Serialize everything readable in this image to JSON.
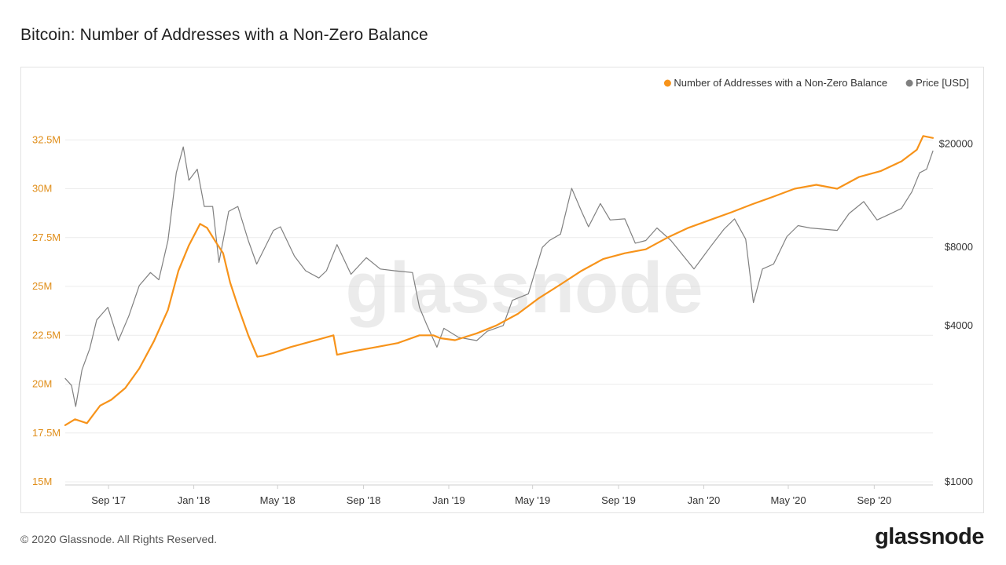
{
  "page": {
    "title": "Bitcoin: Number of Addresses with a Non-Zero Balance",
    "copyright": "© 2020 Glassnode. All Rights Reserved.",
    "logo": "glassnode",
    "watermark": "glassnode"
  },
  "chart_data": {
    "type": "line",
    "title": "Bitcoin: Number of Addresses with a Non-Zero Balance",
    "legend_position": "top-right",
    "grid": true,
    "x_range": [
      "2017-07-01",
      "2020-11-24"
    ],
    "x_tick_labels": [
      "Sep '17",
      "Jan '18",
      "May '18",
      "Sep '18",
      "Jan '19",
      "May '19",
      "Sep '19",
      "Jan '20",
      "May '20",
      "Sep '20"
    ],
    "y_left": {
      "range": [
        15,
        35
      ],
      "unit": "M",
      "tick_labels": [
        "15M",
        "17.5M",
        "20M",
        "22.5M",
        "25M",
        "27.5M",
        "30M",
        "32.5M"
      ],
      "tick_values": [
        15,
        17.5,
        20,
        22.5,
        25,
        27.5,
        30,
        32.5
      ]
    },
    "y_right": {
      "scale": "log",
      "range": [
        1000,
        32000
      ],
      "tick_labels": [
        "$1000",
        "$4000",
        "$8000",
        "$20000"
      ],
      "tick_values": [
        1000,
        4000,
        8000,
        20000
      ]
    },
    "series": [
      {
        "name": "Number of Addresses with a Non-Zero Balance",
        "axis": "left",
        "color": "#f7931a",
        "x": [
          "2017-07-01",
          "2017-07-15",
          "2017-08-01",
          "2017-08-20",
          "2017-09-05",
          "2017-09-25",
          "2017-10-15",
          "2017-11-05",
          "2017-11-25",
          "2017-12-10",
          "2017-12-25",
          "2018-01-10",
          "2018-01-20",
          "2018-02-01",
          "2018-02-12",
          "2018-02-22",
          "2018-03-05",
          "2018-03-20",
          "2018-04-02",
          "2018-04-10",
          "2018-04-25",
          "2018-05-20",
          "2018-06-20",
          "2018-07-20",
          "2018-07-25",
          "2018-08-20",
          "2018-09-20",
          "2018-10-20",
          "2018-11-20",
          "2018-12-10",
          "2018-12-20",
          "2019-01-10",
          "2019-02-10",
          "2019-03-10",
          "2019-04-10",
          "2019-05-10",
          "2019-06-10",
          "2019-07-10",
          "2019-08-10",
          "2019-09-10",
          "2019-10-10",
          "2019-11-10",
          "2019-12-10",
          "2020-01-10",
          "2020-02-10",
          "2020-03-10",
          "2020-04-10",
          "2020-05-10",
          "2020-06-10",
          "2020-07-10",
          "2020-08-10",
          "2020-09-10",
          "2020-10-10",
          "2020-11-01",
          "2020-11-10",
          "2020-11-24"
        ],
        "values": [
          17.9,
          18.2,
          18.0,
          18.9,
          19.2,
          19.8,
          20.8,
          22.2,
          23.8,
          25.8,
          27.1,
          28.2,
          28.0,
          27.3,
          26.7,
          25.2,
          24.0,
          22.5,
          21.4,
          21.45,
          21.6,
          21.9,
          22.2,
          22.5,
          21.5,
          21.7,
          21.9,
          22.1,
          22.5,
          22.5,
          22.35,
          22.25,
          22.6,
          23.0,
          23.6,
          24.4,
          25.1,
          25.8,
          26.4,
          26.7,
          26.9,
          27.5,
          28.0,
          28.4,
          28.8,
          29.2,
          29.6,
          30.0,
          30.2,
          30.0,
          30.6,
          30.9,
          31.4,
          32.0,
          32.7,
          32.6
        ]
      },
      {
        "name": "Price [USD]",
        "axis": "right",
        "color": "#808080",
        "x": [
          "2017-07-01",
          "2017-07-10",
          "2017-07-16",
          "2017-07-25",
          "2017-08-05",
          "2017-08-15",
          "2017-08-31",
          "2017-09-15",
          "2017-09-30",
          "2017-10-15",
          "2017-10-31",
          "2017-11-12",
          "2017-11-25",
          "2017-12-07",
          "2017-12-17",
          "2017-12-25",
          "2018-01-06",
          "2018-01-16",
          "2018-01-28",
          "2018-02-06",
          "2018-02-20",
          "2018-03-05",
          "2018-03-20",
          "2018-04-01",
          "2018-04-25",
          "2018-05-05",
          "2018-05-25",
          "2018-06-10",
          "2018-06-29",
          "2018-07-10",
          "2018-07-25",
          "2018-08-14",
          "2018-09-05",
          "2018-09-25",
          "2018-10-15",
          "2018-11-10",
          "2018-11-20",
          "2018-12-01",
          "2018-12-15",
          "2018-12-25",
          "2019-01-15",
          "2019-02-10",
          "2019-02-25",
          "2019-03-20",
          "2019-04-02",
          "2019-04-25",
          "2019-05-15",
          "2019-05-25",
          "2019-06-10",
          "2019-06-26",
          "2019-07-10",
          "2019-07-20",
          "2019-08-06",
          "2019-08-20",
          "2019-09-10",
          "2019-09-25",
          "2019-10-10",
          "2019-10-26",
          "2019-11-15",
          "2019-12-05",
          "2019-12-18",
          "2020-01-10",
          "2020-01-30",
          "2020-02-14",
          "2020-03-01",
          "2020-03-12",
          "2020-03-25",
          "2020-04-10",
          "2020-04-29",
          "2020-05-15",
          "2020-06-01",
          "2020-06-20",
          "2020-07-10",
          "2020-07-27",
          "2020-08-17",
          "2020-09-05",
          "2020-09-25",
          "2020-10-10",
          "2020-10-25",
          "2020-11-05",
          "2020-11-15",
          "2020-11-24"
        ],
        "values": [
          2500,
          2350,
          1950,
          2700,
          3250,
          4200,
          4700,
          3500,
          4350,
          5700,
          6400,
          6000,
          8500,
          15500,
          19500,
          14500,
          16000,
          11500,
          11500,
          7000,
          11000,
          11500,
          8500,
          6900,
          9300,
          9600,
          7400,
          6500,
          6100,
          6500,
          8200,
          6300,
          7300,
          6600,
          6500,
          6400,
          4700,
          4000,
          3300,
          3900,
          3600,
          3500,
          3800,
          4000,
          5000,
          5300,
          8000,
          8500,
          9000,
          13500,
          11000,
          9600,
          11800,
          10200,
          10300,
          8300,
          8500,
          9500,
          8500,
          7300,
          6600,
          8000,
          9400,
          10300,
          8600,
          4900,
          6600,
          6900,
          8800,
          9700,
          9500,
          9400,
          9300,
          10800,
          12000,
          10200,
          10800,
          11300,
          13100,
          15500,
          16000,
          18800
        ]
      }
    ]
  }
}
